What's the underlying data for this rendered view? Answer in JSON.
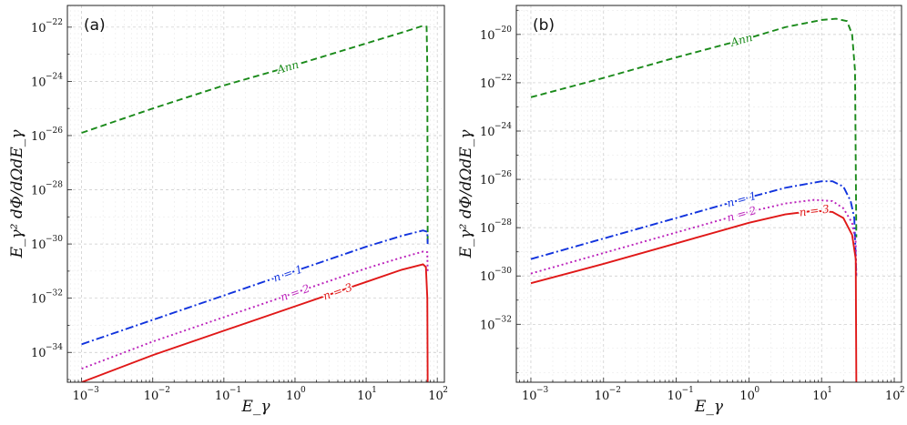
{
  "chart_data": [
    {
      "type": "line",
      "panel_label": "(a)",
      "xlabel": "E_γ",
      "ylabel": "E_γ² dΦ/dΩdE_γ",
      "x_scale": "log",
      "y_scale": "log",
      "xlim_log10": [
        -3.2,
        2.1
      ],
      "ylim_log10": [
        -35.1,
        -21.2
      ],
      "x_ticks_log10": [
        -3,
        -2,
        -1,
        0,
        1,
        2
      ],
      "x_tick_labels": [
        "10",
        "10",
        "10",
        "10",
        "10",
        "10"
      ],
      "x_tick_exponents": [
        "−3",
        "−2",
        "−1",
        "0",
        "1",
        "2"
      ],
      "y_ticks_log10": [
        -34,
        -32,
        -30,
        -28,
        -26,
        -24,
        -22
      ],
      "y_tick_labels": [
        "10",
        "10",
        "10",
        "10",
        "10",
        "10",
        "10"
      ],
      "y_tick_exponents": [
        "−34",
        "−32",
        "−30",
        "−28",
        "−26",
        "−24",
        "−22"
      ],
      "grid": true,
      "series": [
        {
          "name": "Ann",
          "label": "Ann",
          "color": "#1a8a1a",
          "dash": "7 4",
          "label_at_log10E": -0.1,
          "points": [
            [
              -3,
              -25.9
            ],
            [
              -2,
              -25.0
            ],
            [
              -1,
              -24.15
            ],
            [
              0,
              -23.4
            ],
            [
              1,
              -22.6
            ],
            [
              1.5,
              -22.2
            ],
            [
              1.8,
              -21.95
            ],
            [
              1.85,
              -21.98
            ],
            [
              1.86,
              -23.5
            ],
            [
              1.865,
              -30.0
            ]
          ]
        },
        {
          "name": "n = 1",
          "label": "n = 1",
          "color": "#1133dd",
          "dash": "9 3 2 3",
          "label_at_log10E": -0.1,
          "points": [
            [
              -3,
              -33.7
            ],
            [
              -2,
              -32.8
            ],
            [
              -1,
              -31.9
            ],
            [
              0,
              -31.0
            ],
            [
              1,
              -30.1
            ],
            [
              1.5,
              -29.7
            ],
            [
              1.8,
              -29.5
            ],
            [
              1.86,
              -29.55
            ],
            [
              1.865,
              -30.0
            ]
          ]
        },
        {
          "name": "n = 2",
          "label": "n = 2",
          "color": "#bb22bb",
          "dash": "2 3",
          "label_at_log10E": 0.0,
          "points": [
            [
              -3,
              -34.6
            ],
            [
              -2,
              -33.6
            ],
            [
              -1,
              -32.7
            ],
            [
              0,
              -31.8
            ],
            [
              1,
              -30.9
            ],
            [
              1.5,
              -30.5
            ],
            [
              1.8,
              -30.28
            ],
            [
              1.86,
              -30.3
            ],
            [
              1.865,
              -31.0
            ]
          ]
        },
        {
          "name": "n = 3",
          "label": "n = 3",
          "color": "#e01818",
          "dash": "",
          "label_at_log10E": 0.6,
          "points": [
            [
              -3,
              -35.1
            ],
            [
              -2,
              -34.1
            ],
            [
              -1,
              -33.2
            ],
            [
              0,
              -32.3
            ],
            [
              1,
              -31.4
            ],
            [
              1.5,
              -30.95
            ],
            [
              1.8,
              -30.75
            ],
            [
              1.84,
              -30.85
            ],
            [
              1.86,
              -32.0
            ],
            [
              1.865,
              -35.1
            ]
          ]
        }
      ]
    },
    {
      "type": "line",
      "panel_label": "(b)",
      "xlabel": "E_γ",
      "ylabel": "E_γ² dΦ/dΩdE_γ",
      "x_scale": "log",
      "y_scale": "log",
      "xlim_log10": [
        -3.2,
        2.1
      ],
      "ylim_log10": [
        -34.4,
        -18.8
      ],
      "x_ticks_log10": [
        -3,
        -2,
        -1,
        0,
        1,
        2
      ],
      "x_tick_labels": [
        "10",
        "10",
        "10",
        "10",
        "10",
        "10"
      ],
      "x_tick_exponents": [
        "−3",
        "−2",
        "−1",
        "0",
        "1",
        "2"
      ],
      "y_ticks_log10": [
        -32,
        -30,
        -28,
        -26,
        -24,
        -22,
        -20
      ],
      "y_tick_labels": [
        "10",
        "10",
        "10",
        "10",
        "10",
        "10",
        "10"
      ],
      "y_tick_exponents": [
        "−32",
        "−30",
        "−28",
        "−26",
        "−24",
        "−22",
        "−20"
      ],
      "grid": true,
      "series": [
        {
          "name": "Ann",
          "label": "Ann",
          "color": "#1a8a1a",
          "dash": "7 4",
          "label_at_log10E": -0.1,
          "points": [
            [
              -3,
              -22.6
            ],
            [
              -2,
              -21.8
            ],
            [
              -1,
              -20.95
            ],
            [
              0,
              -20.15
            ],
            [
              0.5,
              -19.7
            ],
            [
              1,
              -19.4
            ],
            [
              1.2,
              -19.35
            ],
            [
              1.35,
              -19.45
            ],
            [
              1.42,
              -20.0
            ],
            [
              1.46,
              -21.5
            ],
            [
              1.478,
              -28.4
            ]
          ]
        },
        {
          "name": "n = 1",
          "label": "n = 1",
          "color": "#1133dd",
          "dash": "9 3 2 3",
          "label_at_log10E": -0.1,
          "points": [
            [
              -3,
              -29.3
            ],
            [
              -2,
              -28.45
            ],
            [
              -1,
              -27.6
            ],
            [
              0,
              -26.75
            ],
            [
              0.5,
              -26.35
            ],
            [
              1,
              -26.08
            ],
            [
              1.15,
              -26.08
            ],
            [
              1.3,
              -26.3
            ],
            [
              1.4,
              -26.9
            ],
            [
              1.45,
              -27.6
            ],
            [
              1.478,
              -30.0
            ]
          ]
        },
        {
          "name": "n = 2",
          "label": "n = 2",
          "color": "#bb22bb",
          "dash": "2 3",
          "label_at_log10E": -0.1,
          "points": [
            [
              -3,
              -29.9
            ],
            [
              -2,
              -29.05
            ],
            [
              -1,
              -28.2
            ],
            [
              0,
              -27.35
            ],
            [
              0.5,
              -27.0
            ],
            [
              0.9,
              -26.85
            ],
            [
              1.15,
              -26.9
            ],
            [
              1.3,
              -27.2
            ],
            [
              1.42,
              -27.8
            ],
            [
              1.47,
              -28.6
            ],
            [
              1.478,
              -30.0
            ]
          ]
        },
        {
          "name": "n = 3",
          "label": "n = 3",
          "color": "#e01818",
          "dash": "",
          "label_at_log10E": 0.9,
          "points": [
            [
              -3,
              -30.3
            ],
            [
              -2,
              -29.5
            ],
            [
              -1,
              -28.65
            ],
            [
              0,
              -27.8
            ],
            [
              0.5,
              -27.45
            ],
            [
              0.9,
              -27.3
            ],
            [
              1.15,
              -27.35
            ],
            [
              1.3,
              -27.6
            ],
            [
              1.42,
              -28.3
            ],
            [
              1.47,
              -29.3
            ],
            [
              1.478,
              -34.4
            ]
          ]
        }
      ]
    }
  ]
}
